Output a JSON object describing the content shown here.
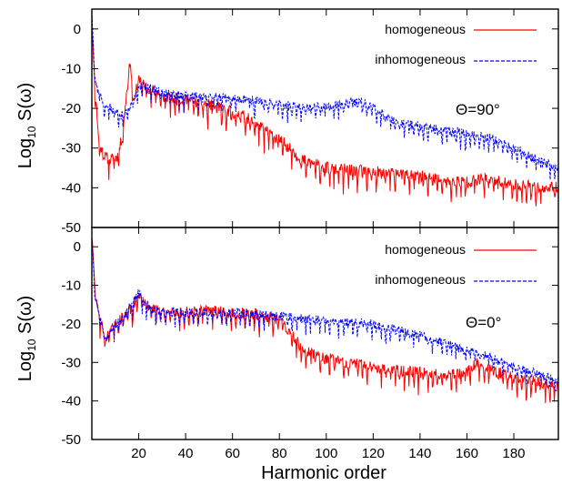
{
  "chart_data": [
    {
      "type": "line",
      "annotation": "Θ=90°",
      "ylabel_base": "Log",
      "ylabel_sub": "10",
      "ylabel_rest": " S(ω)",
      "xlim": [
        0,
        199
      ],
      "ylim": [
        -50,
        5
      ],
      "yticks": [
        "0",
        "-10",
        "-20",
        "-30",
        "-40",
        "-50"
      ],
      "ytick_values": [
        0,
        -10,
        -20,
        -30,
        -40,
        -50
      ],
      "legend": "top-right",
      "grid": false,
      "series": [
        {
          "name": "homogeneous",
          "color": "#ff0000",
          "style": "solid",
          "envelope_x": [
            0,
            1,
            2,
            3,
            5,
            8,
            11,
            13,
            15,
            16,
            17,
            18,
            20,
            22,
            25,
            30,
            40,
            50,
            60,
            65,
            70,
            75,
            80,
            85,
            88,
            90,
            95,
            100,
            110,
            120,
            130,
            140,
            150,
            160,
            165,
            170,
            175,
            180,
            190,
            199
          ],
          "envelope_y": [
            2,
            -10,
            -20,
            -28,
            -32,
            -33,
            -32,
            -27,
            -15,
            -8,
            -12,
            -18,
            -12,
            -14,
            -15,
            -17,
            -18,
            -19,
            -21,
            -22,
            -24,
            -26,
            -28,
            -30,
            -32,
            -33,
            -34,
            -35,
            -35.5,
            -36,
            -36.5,
            -37,
            -38,
            -38.5,
            -38,
            -37.5,
            -38.5,
            -39,
            -40,
            -40
          ]
        },
        {
          "name": "inhomogeneous",
          "color": "#0000ff",
          "style": "dashed",
          "envelope_x": [
            0,
            1,
            2,
            4,
            8,
            12,
            15,
            18,
            20,
            22,
            25,
            30,
            40,
            50,
            60,
            70,
            80,
            90,
            100,
            110,
            115,
            120,
            125,
            130,
            140,
            150,
            160,
            170,
            180,
            190,
            199
          ],
          "envelope_y": [
            5,
            -10,
            -14,
            -18,
            -20,
            -22,
            -21,
            -18,
            -15,
            -14,
            -15,
            -16,
            -17,
            -17,
            -17.5,
            -18,
            -19,
            -20,
            -19.5,
            -18.5,
            -18.5,
            -19.5,
            -22,
            -23.5,
            -24.5,
            -25.5,
            -26.5,
            -27.5,
            -30,
            -33,
            -35
          ]
        }
      ]
    },
    {
      "type": "line",
      "annotation": "Θ=0°",
      "ylabel_base": "Log",
      "ylabel_sub": "10",
      "ylabel_rest": " S(ω)",
      "xlabel": "Harmonic order",
      "xlim": [
        0,
        199
      ],
      "ylim": [
        -50,
        5
      ],
      "xticks": [
        "20",
        "40",
        "60",
        "80",
        "100",
        "120",
        "140",
        "160",
        "180"
      ],
      "xtick_values": [
        20,
        40,
        60,
        80,
        100,
        120,
        140,
        160,
        180
      ],
      "yticks": [
        "0",
        "-10",
        "-20",
        "-30",
        "-40",
        "-50"
      ],
      "ytick_values": [
        0,
        -10,
        -20,
        -30,
        -40,
        -50
      ],
      "legend": "top-right",
      "grid": false,
      "series": [
        {
          "name": "homogeneous",
          "color": "#ff0000",
          "style": "solid",
          "envelope_x": [
            0,
            1,
            2,
            4,
            6,
            8,
            10,
            14,
            18,
            20,
            22,
            25,
            30,
            40,
            50,
            60,
            70,
            80,
            85,
            88,
            90,
            95,
            100,
            110,
            120,
            130,
            140,
            150,
            160,
            165,
            170,
            180,
            190,
            199
          ],
          "envelope_y": [
            3,
            -8,
            -15,
            -20,
            -24,
            -22,
            -20,
            -18,
            -15,
            -13,
            -14,
            -16,
            -17,
            -17,
            -16.5,
            -17,
            -17.5,
            -19,
            -22,
            -25,
            -26.5,
            -28,
            -29,
            -30,
            -31,
            -32,
            -32.5,
            -33,
            -32.5,
            -30,
            -32,
            -34,
            -35,
            -36
          ]
        },
        {
          "name": "inhomogeneous",
          "color": "#0000ff",
          "style": "dashed",
          "envelope_x": [
            0,
            1,
            2,
            4,
            6,
            8,
            10,
            14,
            18,
            20,
            22,
            25,
            30,
            40,
            50,
            60,
            70,
            80,
            90,
            100,
            110,
            120,
            130,
            140,
            150,
            160,
            170,
            180,
            190,
            199
          ],
          "envelope_y": [
            3,
            -8,
            -15,
            -20,
            -24,
            -22,
            -20,
            -18,
            -14,
            -12,
            -14,
            -16,
            -17,
            -17,
            -17,
            -17,
            -17.5,
            -18,
            -18.5,
            -19,
            -19.5,
            -20,
            -21.5,
            -23,
            -25,
            -27,
            -28.5,
            -31,
            -33,
            -35
          ]
        }
      ]
    }
  ]
}
